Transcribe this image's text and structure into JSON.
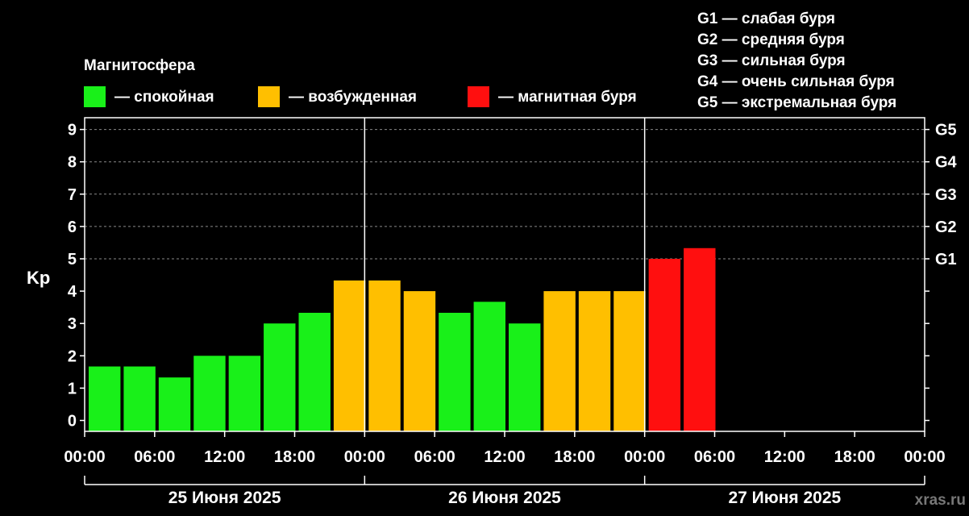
{
  "colors": {
    "background": "#000000",
    "quiet": "#19f019",
    "disturbed": "#ffbf00",
    "storm": "#ff0f0f",
    "axis": "#ffffff",
    "grid": "#8a8a8a"
  },
  "legend": {
    "title": "Магнитосфера",
    "items": [
      {
        "label": "— спокойная",
        "color": "#19f019"
      },
      {
        "label": "— возбужденная",
        "color": "#ffbf00"
      },
      {
        "label": "— магнитная буря",
        "color": "#ff0f0f"
      }
    ]
  },
  "storm_scale": [
    "G1 — слабая буря",
    "G2 — средняя буря",
    "G3 — сильная буря",
    "G4 — очень сильная буря",
    "G5 — экстремальная буря"
  ],
  "watermark": "xras.ru",
  "chart_data": {
    "type": "bar",
    "ylabel": "Kp",
    "ylim": [
      0,
      9
    ],
    "yticks": [
      0,
      1,
      2,
      3,
      4,
      5,
      6,
      7,
      8,
      9
    ],
    "right_ticks": [
      {
        "value": 5,
        "label": "G1"
      },
      {
        "value": 6,
        "label": "G2"
      },
      {
        "value": 7,
        "label": "G3"
      },
      {
        "value": 8,
        "label": "G4"
      },
      {
        "value": 9,
        "label": "G5"
      }
    ],
    "grid": "horizontal dashed",
    "x_tick_labels": [
      "00:00",
      "06:00",
      "12:00",
      "18:00",
      "00:00",
      "06:00",
      "12:00",
      "18:00",
      "00:00",
      "06:00",
      "12:00",
      "18:00",
      "00:00"
    ],
    "days": [
      "25 Июня 2025",
      "26 Июня 2025",
      "27 Июня 2025"
    ],
    "interval_hours": 3,
    "values": [
      1.67,
      1.67,
      1.33,
      2.0,
      2.0,
      3.0,
      3.33,
      4.33,
      4.33,
      4.0,
      3.33,
      3.67,
      3.0,
      4.0,
      4.0,
      4.0,
      5.0,
      5.33
    ],
    "levels": [
      "quiet",
      "quiet",
      "quiet",
      "quiet",
      "quiet",
      "quiet",
      "quiet",
      "disturbed",
      "disturbed",
      "disturbed",
      "quiet",
      "quiet",
      "quiet",
      "disturbed",
      "disturbed",
      "disturbed",
      "storm",
      "storm"
    ]
  }
}
